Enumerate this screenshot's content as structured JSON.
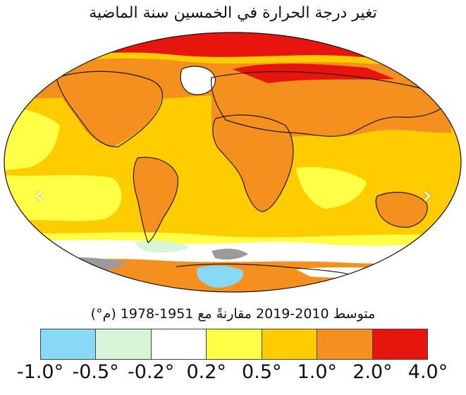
{
  "title": "تغير درجة الحرارة في الخمسين سنة الماضية",
  "subtitle": "متوسط 2010-2019 مقارنةً مع 1951-1978 (م°)",
  "nav": {
    "prev_icon": "‹",
    "next_icon": "›"
  },
  "legend": {
    "colors": [
      "#87d9f5",
      "#d9f5d9",
      "#ffffff",
      "#ffff45",
      "#ffcc00",
      "#f5901e",
      "#e8150e"
    ],
    "ticks": [
      "-1.0°",
      "-0.5°",
      "-0.2°",
      "0.2°",
      "0.5°",
      "1.0°",
      "2.0°",
      "4.0°"
    ]
  }
}
